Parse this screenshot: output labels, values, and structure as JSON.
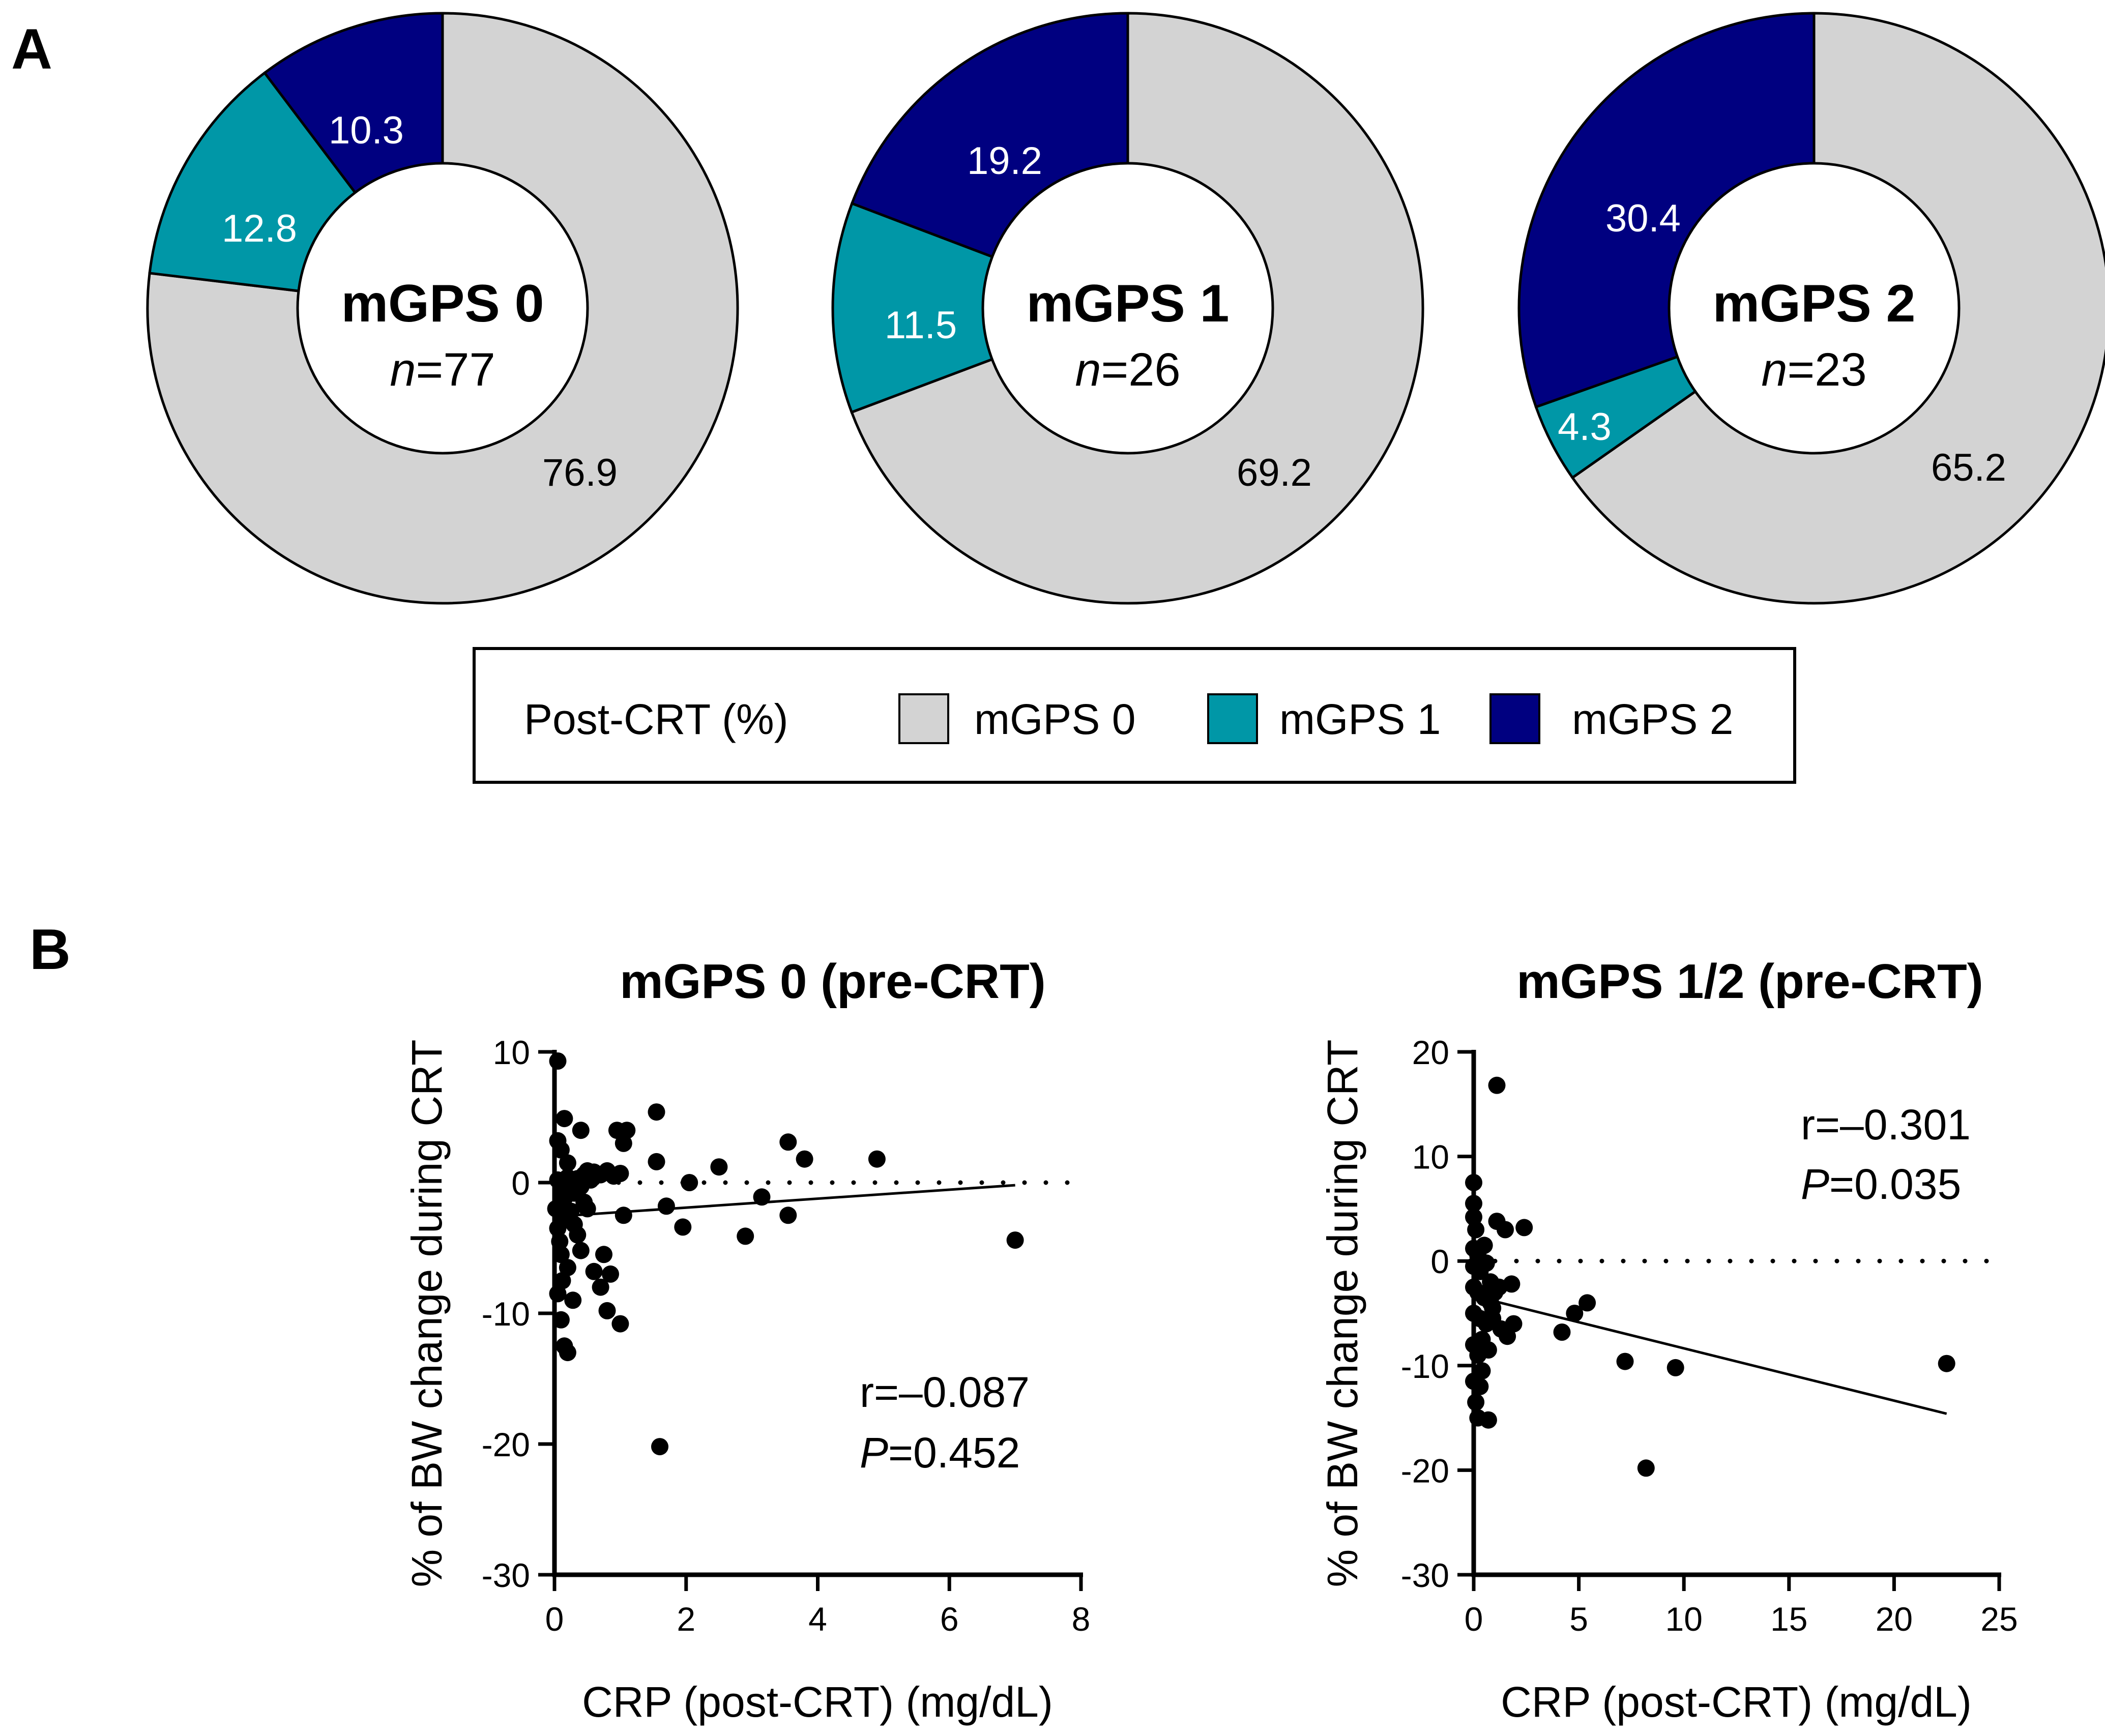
{
  "panels": {
    "a_label": "A",
    "b_label": "B"
  },
  "colors": {
    "mgps0": "#d3d3d3",
    "mgps1": "#0097a7",
    "mgps2": "#000080",
    "outline": "#000000"
  },
  "legend": {
    "title": "Post-CRT (%)",
    "items": [
      "mGPS 0",
      "mGPS 1",
      "mGPS 2"
    ]
  },
  "chart_data": [
    {
      "type": "pie",
      "variant": "donut",
      "title": "mGPS 0",
      "n_prefix": "n",
      "n_value": "=77",
      "slices": [
        {
          "name": "mGPS 0",
          "value": 76.9,
          "label": "76.9"
        },
        {
          "name": "mGPS 1",
          "value": 12.8,
          "label": "12.8"
        },
        {
          "name": "mGPS 2",
          "value": 10.3,
          "label": "10.3"
        }
      ]
    },
    {
      "type": "pie",
      "variant": "donut",
      "title": "mGPS 1",
      "n_prefix": "n",
      "n_value": "=26",
      "slices": [
        {
          "name": "mGPS 0",
          "value": 69.2,
          "label": "69.2"
        },
        {
          "name": "mGPS 1",
          "value": 11.5,
          "label": "11.5"
        },
        {
          "name": "mGPS 2",
          "value": 19.2,
          "label": "19.2"
        }
      ]
    },
    {
      "type": "pie",
      "variant": "donut",
      "title": "mGPS 2",
      "n_prefix": "n",
      "n_value": "=23",
      "slices": [
        {
          "name": "mGPS 0",
          "value": 65.2,
          "label": "65.2"
        },
        {
          "name": "mGPS 1",
          "value": 4.3,
          "label": "4.3"
        },
        {
          "name": "mGPS 2",
          "value": 30.4,
          "label": "30.4"
        }
      ]
    },
    {
      "type": "scatter",
      "title": "mGPS 0 (pre-CRT)",
      "xlabel": "CRP (post-CRT) (mg/dL)",
      "ylabel": "% of BW change during CRT",
      "xlim": [
        0,
        8
      ],
      "ylim": [
        -30,
        10
      ],
      "xticks": [
        0,
        2,
        4,
        6,
        8
      ],
      "yticks": [
        10,
        0,
        -10,
        -20,
        -30
      ],
      "reference_line_y": 0,
      "fit_line": {
        "x": [
          0,
          7
        ],
        "y": [
          -2.6,
          -0.2
        ]
      },
      "stats": {
        "r_text": "r=–0.087",
        "p_prefix": "P",
        "p_value": "=0.452"
      },
      "points": [
        [
          0.05,
          9.3
        ],
        [
          0.05,
          3.2
        ],
        [
          0.1,
          2.5
        ],
        [
          0.15,
          4.9
        ],
        [
          0.2,
          1.5
        ],
        [
          0.4,
          4.0
        ],
        [
          0.05,
          0.2
        ],
        [
          0.1,
          -0.5
        ],
        [
          0.15,
          -1.2
        ],
        [
          0.2,
          0.4
        ],
        [
          0.25,
          0.1
        ],
        [
          0.3,
          -0.8
        ],
        [
          0.35,
          0.3
        ],
        [
          0.4,
          -0.3
        ],
        [
          0.45,
          0.6
        ],
        [
          0.5,
          0.9
        ],
        [
          0.55,
          0.2
        ],
        [
          0.6,
          0.8
        ],
        [
          0.7,
          0.6
        ],
        [
          0.8,
          0.9
        ],
        [
          0.9,
          0.5
        ],
        [
          0.95,
          4.0
        ],
        [
          1.05,
          3.0
        ],
        [
          1.1,
          4.0
        ],
        [
          1.0,
          0.7
        ],
        [
          0.02,
          -2.0
        ],
        [
          0.05,
          -3.5
        ],
        [
          0.08,
          -4.5
        ],
        [
          0.1,
          -5.5
        ],
        [
          0.15,
          -2.8
        ],
        [
          0.2,
          -6.5
        ],
        [
          0.25,
          -2.2
        ],
        [
          0.3,
          -3.2
        ],
        [
          0.35,
          -4.0
        ],
        [
          0.4,
          -5.2
        ],
        [
          0.5,
          -2.0
        ],
        [
          0.6,
          -6.8
        ],
        [
          0.7,
          -8.0
        ],
        [
          0.75,
          -5.5
        ],
        [
          0.85,
          -7.0
        ],
        [
          0.8,
          -9.8
        ],
        [
          1.0,
          -10.8
        ],
        [
          1.05,
          -2.5
        ],
        [
          0.05,
          -8.5
        ],
        [
          0.1,
          -10.5
        ],
        [
          0.15,
          -12.5
        ],
        [
          0.2,
          -13.0
        ],
        [
          0.12,
          -7.5
        ],
        [
          0.28,
          -9.0
        ],
        [
          0.45,
          -1.5
        ],
        [
          1.55,
          5.4
        ],
        [
          1.55,
          1.6
        ],
        [
          1.7,
          -1.8
        ],
        [
          1.95,
          -3.4
        ],
        [
          2.05,
          0.0
        ],
        [
          2.5,
          1.2
        ],
        [
          2.9,
          -4.1
        ],
        [
          3.15,
          -1.1
        ],
        [
          3.55,
          3.1
        ],
        [
          3.55,
          -2.5
        ],
        [
          3.8,
          1.8
        ],
        [
          4.9,
          1.8
        ],
        [
          7.0,
          -4.4
        ],
        [
          1.6,
          -20.2
        ]
      ]
    },
    {
      "type": "scatter",
      "title": "mGPS 1/2 (pre-CRT)",
      "xlabel": "CRP (post-CRT) (mg/dL)",
      "ylabel": "% of BW change during CRT",
      "xlim": [
        0,
        25
      ],
      "ylim": [
        -30,
        20
      ],
      "xticks": [
        0,
        5,
        10,
        15,
        20,
        25
      ],
      "yticks": [
        20,
        10,
        0,
        -10,
        -20,
        -30
      ],
      "reference_line_y": 0,
      "fit_line": {
        "x": [
          0.5,
          22.5
        ],
        "y": [
          -3.6,
          -14.6
        ]
      },
      "stats": {
        "r_text": "r=–0.301",
        "p_prefix": "P",
        "p_value": "=0.035"
      },
      "points": [
        [
          1.1,
          16.8
        ],
        [
          0.0,
          7.5
        ],
        [
          0.0,
          5.5
        ],
        [
          0.0,
          4.2
        ],
        [
          0.1,
          3.0
        ],
        [
          1.1,
          3.8
        ],
        [
          1.5,
          3.0
        ],
        [
          2.4,
          3.2
        ],
        [
          0.0,
          1.2
        ],
        [
          0.2,
          0.5
        ],
        [
          0.5,
          1.5
        ],
        [
          0.0,
          -0.5
        ],
        [
          0.3,
          -1.0
        ],
        [
          0.6,
          -0.2
        ],
        [
          0.8,
          -2.0
        ],
        [
          0.0,
          -2.5
        ],
        [
          0.2,
          -3.0
        ],
        [
          0.5,
          -3.5
        ],
        [
          0.8,
          -4.0
        ],
        [
          1.0,
          -3.0
        ],
        [
          1.2,
          -2.5
        ],
        [
          1.8,
          -2.2
        ],
        [
          0.0,
          -5.0
        ],
        [
          0.3,
          -5.5
        ],
        [
          0.6,
          -6.0
        ],
        [
          0.9,
          -5.5
        ],
        [
          1.3,
          -6.5
        ],
        [
          1.6,
          -7.2
        ],
        [
          1.9,
          -6.0
        ],
        [
          0.0,
          -8.0
        ],
        [
          0.2,
          -9.0
        ],
        [
          0.4,
          -10.5
        ],
        [
          0.7,
          -8.5
        ],
        [
          0.0,
          -11.5
        ],
        [
          0.3,
          -12.0
        ],
        [
          0.1,
          -13.5
        ],
        [
          0.2,
          -15.0
        ],
        [
          0.7,
          -15.2
        ],
        [
          0.4,
          -7.5
        ],
        [
          0.9,
          -4.5
        ],
        [
          4.2,
          -6.8
        ],
        [
          4.8,
          -5.0
        ],
        [
          5.4,
          -4.0
        ],
        [
          7.2,
          -9.6
        ],
        [
          8.2,
          -19.8
        ],
        [
          9.6,
          -10.2
        ],
        [
          22.5,
          -9.8
        ]
      ]
    }
  ]
}
